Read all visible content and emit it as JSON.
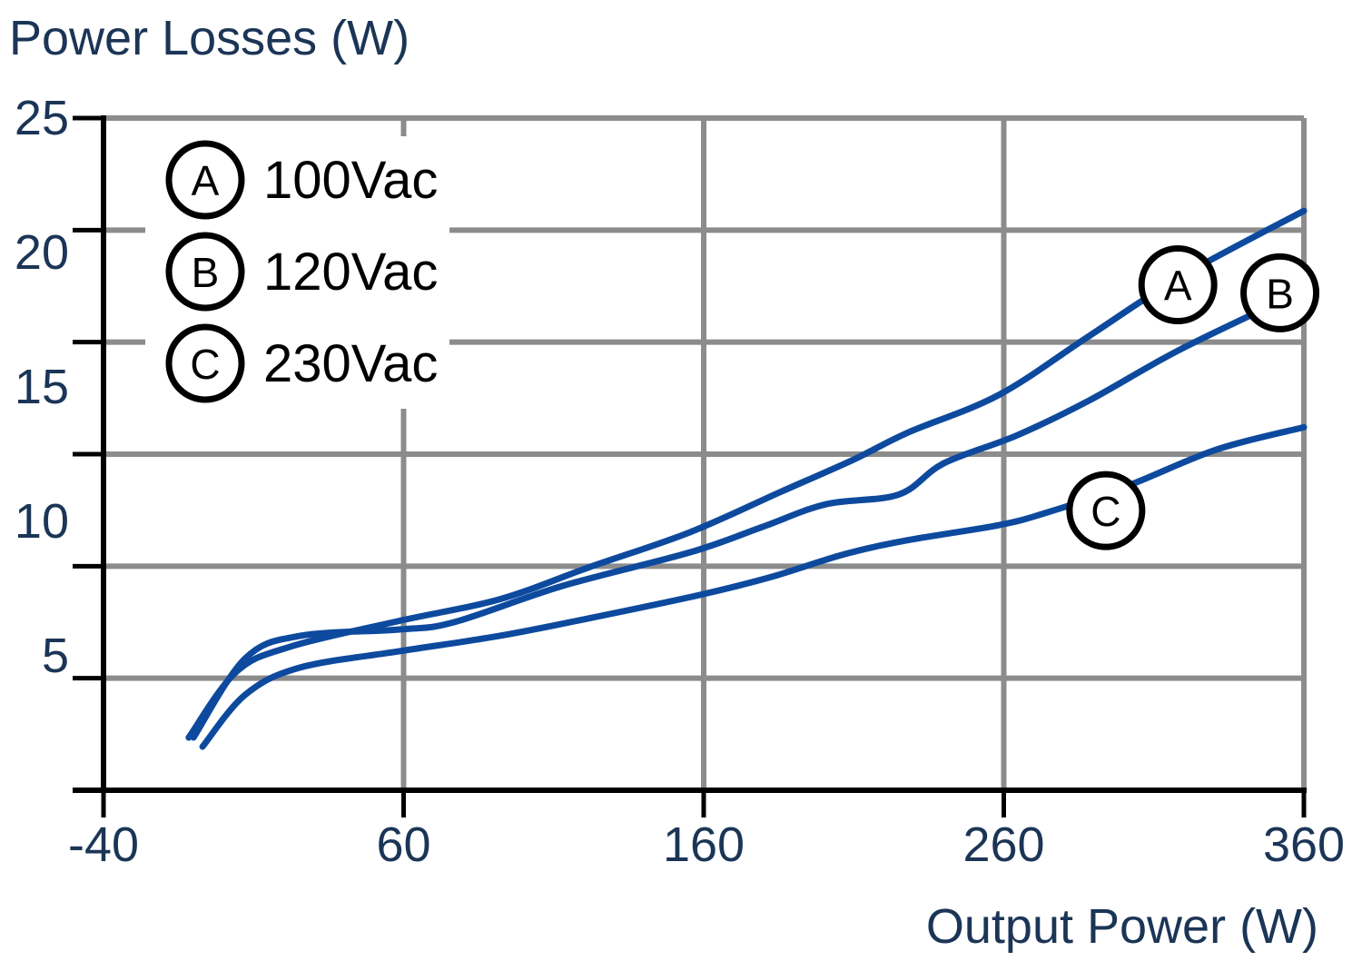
{
  "chart_data": {
    "type": "line",
    "title": "Power Losses (W)",
    "xlabel": "Output Power (W)",
    "ylabel": "",
    "xlim": [
      -40,
      360
    ],
    "ylim": [
      0,
      25
    ],
    "x_ticks": [
      "-40",
      "60",
      "160",
      "260",
      "360"
    ],
    "y_ticks": [
      "5",
      "10",
      "15",
      "20",
      "25"
    ],
    "grid": true,
    "legend_position": "top-left",
    "colors": {
      "line": "#0d4a9e",
      "text": "#1b3556",
      "grid": "#8c8c8c",
      "axis": "#000000"
    },
    "series": [
      {
        "name": "100Vac",
        "marker": "A",
        "x": [
          -11.6,
          4.2,
          22.3,
          58.6,
          91.9,
          122,
          155.5,
          185.7,
          210,
          228,
          258.3,
          288.5,
          318.9,
          360
        ],
        "y": [
          1.96,
          4.4,
          5.34,
          6.3,
          7.1,
          8.3,
          9.6,
          11.1,
          12.3,
          13.3,
          14.7,
          16.9,
          19.1,
          21.55
        ]
      },
      {
        "name": "120Vac",
        "marker": "B",
        "x": [
          -10,
          7.2,
          25.4,
          58.6,
          76.8,
          113,
          155.5,
          179.7,
          200.8,
          225,
          240,
          264.4,
          288.5,
          318.9,
          360
        ],
        "y": [
          1.96,
          4.9,
          5.74,
          5.98,
          6.25,
          7.6,
          8.85,
          9.8,
          10.64,
          11.0,
          12.16,
          13.2,
          14.5,
          16.4,
          18.6
        ]
      },
      {
        "name": "230Vac",
        "marker": "C",
        "x": [
          -7,
          7.2,
          25.4,
          58.6,
          91.9,
          122,
          158.5,
          182.7,
          206.9,
          228,
          258.3,
          273.5,
          300.7,
          330.9,
          360
        ],
        "y": [
          1.62,
          3.55,
          4.56,
          5.17,
          5.74,
          6.4,
          7.26,
          7.94,
          8.78,
          9.3,
          9.86,
          10.3,
          11.3,
          12.67,
          13.5
        ]
      }
    ],
    "curve_labels": [
      {
        "marker": "A",
        "x": 318,
        "y": 18.8
      },
      {
        "marker": "B",
        "x": 352,
        "y": 18.5
      },
      {
        "marker": "C",
        "x": 294,
        "y": 10.4
      }
    ]
  }
}
